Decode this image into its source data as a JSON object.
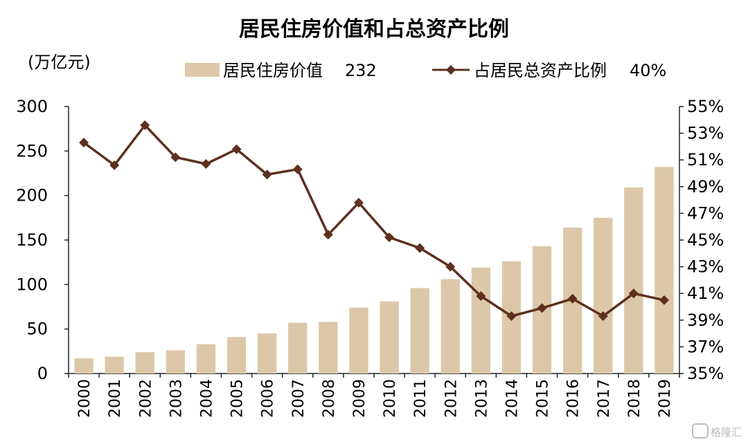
{
  "chart_data": {
    "type": "bar",
    "title": "居民住房价值和占总资产比例",
    "y_unit_label": "(万亿元)",
    "categories": [
      "2000",
      "2001",
      "2002",
      "2003",
      "2004",
      "2005",
      "2006",
      "2007",
      "2008",
      "2009",
      "2010",
      "2011",
      "2012",
      "2013",
      "2014",
      "2015",
      "2016",
      "2017",
      "2018",
      "2019"
    ],
    "series": [
      {
        "name": "居民住房价值",
        "type": "bar",
        "axis": "left",
        "latest_label": "232",
        "color": "#dcc8a8",
        "values": [
          17,
          19,
          24,
          26,
          33,
          41,
          45,
          57,
          58,
          74,
          81,
          96,
          106,
          119,
          126,
          143,
          164,
          175,
          209,
          232
        ]
      },
      {
        "name": "占居民总资产比例",
        "type": "line",
        "axis": "right",
        "latest_label": "40%",
        "color": "#5e2f1f",
        "values": [
          52.3,
          50.6,
          53.6,
          51.2,
          50.7,
          51.8,
          49.9,
          50.3,
          45.4,
          47.8,
          45.2,
          44.4,
          43.0,
          40.8,
          39.3,
          39.9,
          40.6,
          39.3,
          41.0,
          40.5
        ]
      }
    ],
    "y_left": {
      "min": 0,
      "max": 300,
      "ticks": [
        "0",
        "50",
        "100",
        "150",
        "200",
        "250",
        "300"
      ]
    },
    "y_right": {
      "min": 35,
      "max": 55,
      "ticks": [
        "35%",
        "37%",
        "39%",
        "41%",
        "43%",
        "45%",
        "47%",
        "49%",
        "51%",
        "53%",
        "55%"
      ]
    },
    "grid": false,
    "legend_position": "top"
  },
  "watermark": "格隆汇"
}
